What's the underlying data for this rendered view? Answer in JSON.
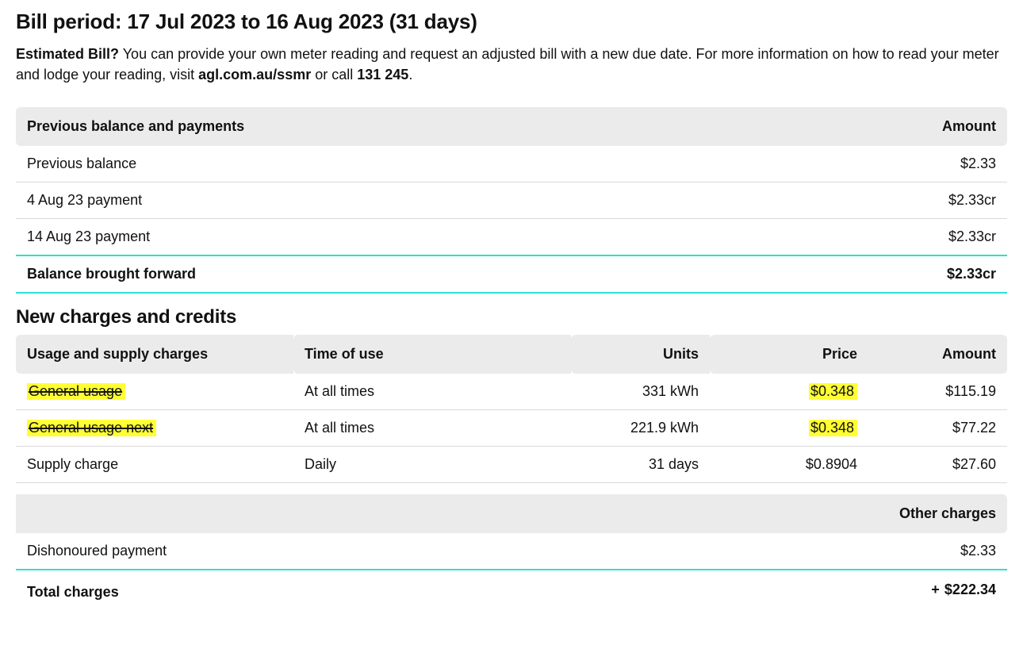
{
  "colors": {
    "accent": "#2de0d0",
    "highlight": "#ffff33",
    "header_bg": "#ebebeb",
    "rule": "#d9d9d9",
    "text": "#111111",
    "background": "#ffffff"
  },
  "typography": {
    "base_fontsize_pt": 14,
    "h1_fontsize_pt": 20,
    "h2_fontsize_pt": 18,
    "font_family": "Segoe UI / Helvetica Neue / Arial"
  },
  "header": {
    "bill_period_title": "Bill period: 17 Jul 2023 to 16 Aug 2023 (31 days)",
    "estimated_bill_label": "Estimated Bill?",
    "intro_text_1": " You can provide your own meter reading and request an adjusted bill with a new due date. For more information on how to read your meter and lodge your reading, visit ",
    "intro_url": "agl.com.au/ssmr",
    "intro_text_2": " or call ",
    "intro_phone": "131 245",
    "intro_text_3": "."
  },
  "previous_section": {
    "title": "Previous balance and payments",
    "amount_header": "Amount",
    "rows": [
      {
        "label": "Previous balance",
        "amount": "$2.33"
      },
      {
        "label": "4 Aug 23 payment",
        "amount": "$2.33cr"
      },
      {
        "label": "14 Aug 23 payment",
        "amount": "$2.33cr"
      }
    ],
    "brought_forward_label": "Balance brought forward",
    "brought_forward_amount": "$2.33cr"
  },
  "new_charges_heading": "New charges and credits",
  "usage_section": {
    "columns": {
      "desc": "Usage and supply charges",
      "time": "Time of use",
      "units": "Units",
      "price": "Price",
      "amount": "Amount"
    },
    "rows": [
      {
        "label": "General usage",
        "label_highlight": true,
        "label_strike": true,
        "time": "At all times",
        "units": "331 kWh",
        "price": "$0.348",
        "price_highlight": true,
        "amount": "$115.19"
      },
      {
        "label": "General usage next",
        "label_highlight": true,
        "label_strike": true,
        "time": "At all times",
        "units": "221.9 kWh",
        "price": "$0.348",
        "price_highlight": true,
        "amount": "$77.22"
      },
      {
        "label": "Supply charge",
        "label_highlight": false,
        "label_strike": false,
        "time": "Daily",
        "units": "31 days",
        "price": "$0.8904",
        "price_highlight": false,
        "amount": "$27.60"
      }
    ]
  },
  "other_section": {
    "title": "Other charges",
    "rows": [
      {
        "label": "Dishonoured payment",
        "amount": "$2.33"
      }
    ]
  },
  "total": {
    "label": "Total charges",
    "plus": "+",
    "amount": "$222.34"
  }
}
